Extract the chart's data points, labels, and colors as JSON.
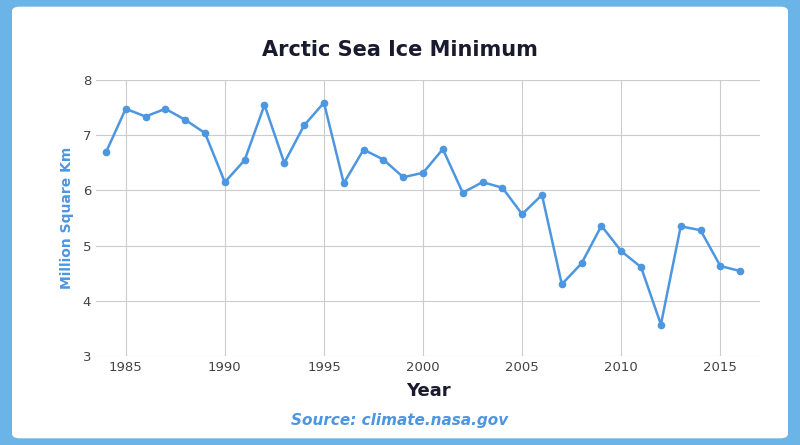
{
  "years": [
    1984,
    1985,
    1986,
    1987,
    1988,
    1989,
    1990,
    1991,
    1992,
    1993,
    1994,
    1995,
    1996,
    1997,
    1998,
    1999,
    2000,
    2001,
    2002,
    2003,
    2004,
    2005,
    2006,
    2007,
    2008,
    2009,
    2010,
    2011,
    2012,
    2013,
    2014,
    2015,
    2016
  ],
  "values": [
    6.69,
    7.48,
    7.34,
    7.48,
    7.28,
    7.04,
    6.15,
    6.55,
    7.55,
    6.5,
    7.18,
    7.59,
    6.13,
    6.74,
    6.56,
    6.24,
    6.32,
    6.75,
    5.96,
    6.15,
    6.05,
    5.57,
    5.92,
    4.3,
    4.68,
    5.36,
    4.9,
    4.61,
    3.57,
    5.35,
    5.28,
    4.63,
    4.54
  ],
  "line_color": "#4d96e0",
  "marker_color": "#4d96e0",
  "title": "Arctic Sea Ice Minimum",
  "title_color": "#1a1a2e",
  "xlabel": "Year",
  "ylabel": "Million Square Km",
  "xlabel_color": "#1a1a2e",
  "ylabel_color": "#4d96e0",
  "source_text": "Source: climate.nasa.gov",
  "source_color": "#4d96e0",
  "ylim": [
    3,
    8
  ],
  "xlim": [
    1983.5,
    2017
  ],
  "yticks": [
    3,
    4,
    5,
    6,
    7,
    8
  ],
  "xticks": [
    1985,
    1990,
    1995,
    2000,
    2005,
    2010,
    2015
  ],
  "background_color": "#ffffff",
  "outer_border_color": "#6ab4e8",
  "grid_color": "#cccccc",
  "plot_bg_color": "#ffffff",
  "fig_bg_color": "#6ab4e8"
}
